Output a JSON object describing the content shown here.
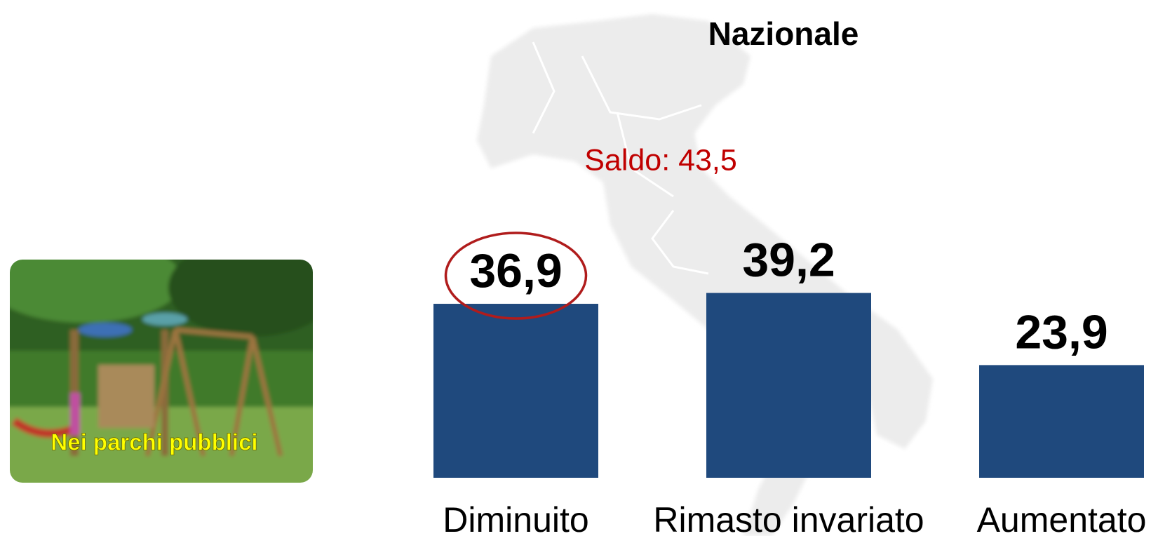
{
  "chart_data": {
    "type": "bar",
    "title": "Nazionale",
    "annotation": "Saldo: 43,5",
    "image_caption": "Nei parchi pubblici",
    "categories": [
      "Diminuito",
      "Rimasto invariato",
      "Aumentato"
    ],
    "values": [
      36.9,
      39.2,
      23.9
    ],
    "value_labels": [
      "36,9",
      "39,2",
      "23,9"
    ],
    "color": "#1f497d",
    "highlight_color": "#b01c1c"
  }
}
